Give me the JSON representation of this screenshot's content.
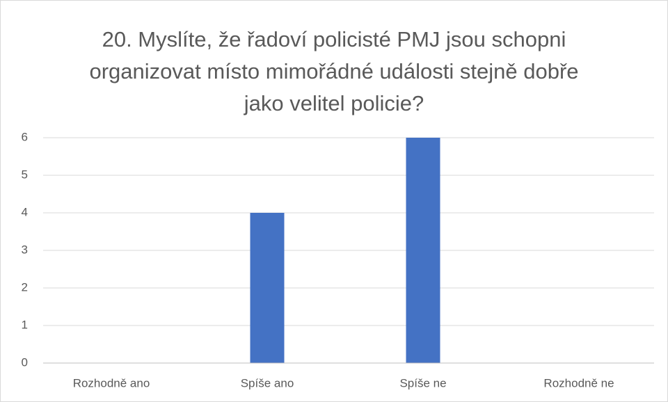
{
  "chart_data": {
    "type": "bar",
    "title": "20. Myslíte, že řadoví policisté PMJ jsou schopni organizovat místo mimořádné události stejně dobře jako velitel policie?",
    "categories": [
      "Rozhodně ano",
      "Spíše ano",
      "Spíše ne",
      "Rozhodně ne"
    ],
    "values": [
      0,
      4,
      6,
      0
    ],
    "color": "#4472c4",
    "ylim": [
      0,
      6
    ],
    "yticks": [
      0,
      1,
      2,
      3,
      4,
      5,
      6
    ],
    "grid": true
  }
}
